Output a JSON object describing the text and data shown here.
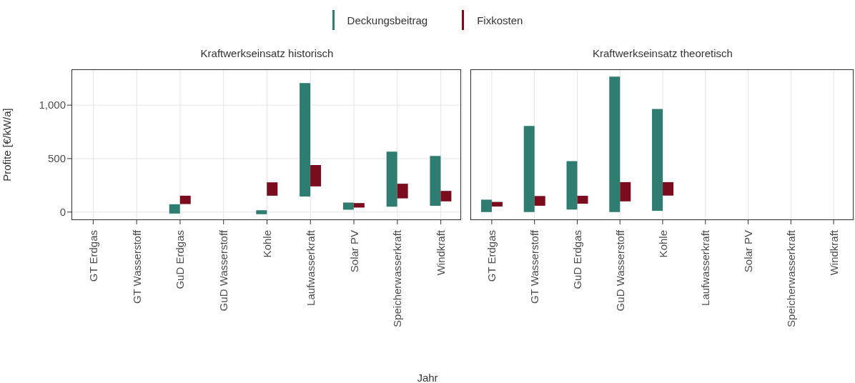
{
  "chart_data": [
    {
      "type": "bar",
      "title": "Kraftwerkseinsatz historisch",
      "xlabel": "Jahr",
      "ylabel": "Profite [€/kW/a]",
      "categories": [
        "GT Erdgas",
        "GT Wasserstoff",
        "GuD Erdgas",
        "GuD Wasserstoff",
        "Kohle",
        "Laufwasserkraft",
        "Solar PV",
        "Speicherwasserkraft",
        "Windkraft"
      ],
      "series": [
        {
          "name": "Deckungsbeitrag",
          "color": "#2e7d70",
          "values": [
            null,
            null,
            87,
            null,
            37,
            1061,
            67,
            515,
            466
          ],
          "base": [
            null,
            null,
            -14,
            null,
            -20,
            145,
            22,
            50,
            58
          ]
        },
        {
          "name": "Fixkosten",
          "color": "#7b0c1d",
          "values": [
            null,
            null,
            78,
            null,
            125,
            200,
            42,
            137,
            98
          ],
          "base": [
            null,
            null,
            75,
            null,
            153,
            240,
            42,
            128,
            100
          ]
        }
      ],
      "ylim": [
        -75,
        1335
      ],
      "yticks": [
        0,
        500,
        {
          "value": 1000,
          "label": "1,000"
        }
      ],
      "grid": true,
      "legend": "top"
    },
    {
      "type": "bar",
      "title": "Kraftwerkseinsatz theoretisch",
      "categories": [
        "GT Erdgas",
        "GT Wasserstoff",
        "GuD Erdgas",
        "GuD Wasserstoff",
        "Kohle",
        "Laufwasserkraft",
        "Solar PV",
        "Speicherwasserkraft",
        "Windkraft"
      ],
      "series": [
        {
          "color": "#2e7d70",
          "values": [
            116,
            805,
            453,
            1266,
            952,
            null,
            null,
            null,
            null
          ],
          "base": [
            0,
            0,
            24,
            0,
            12,
            null,
            null,
            null,
            null
          ]
        },
        {
          "color": "#7b0c1d",
          "values": [
            43,
            91,
            74,
            180,
            126,
            null,
            null,
            null,
            null
          ],
          "base": [
            52,
            59,
            78,
            100,
            154,
            null,
            null,
            null,
            null
          ]
        }
      ],
      "ylim": [
        -75,
        1335
      ],
      "yticks": [
        0,
        500,
        1000
      ],
      "grid": true,
      "tick_labels": "x"
    }
  ]
}
